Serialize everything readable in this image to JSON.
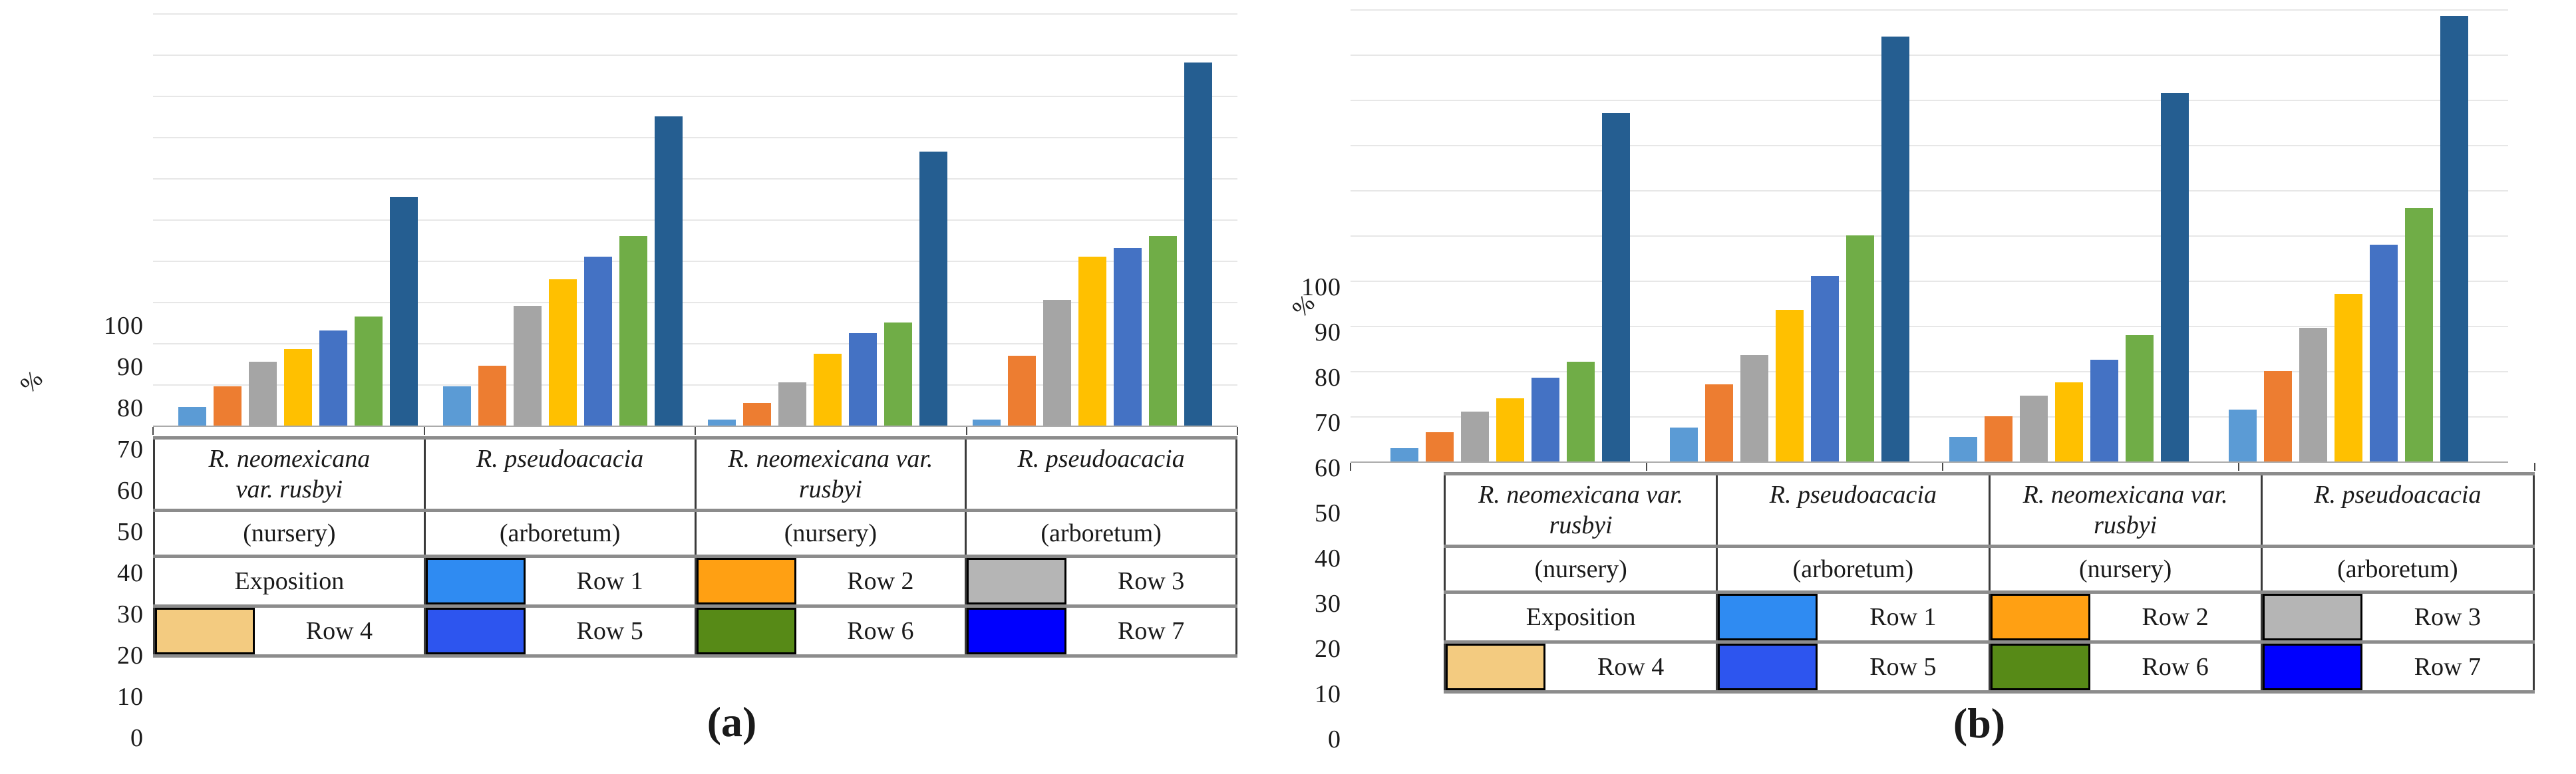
{
  "bar_colors": [
    "#5B9BD5",
    "#ED7D31",
    "#A5A5A5",
    "#FFC000",
    "#4472C4",
    "#70AD47",
    "#255E91"
  ],
  "gridline_color": "#e7e7e7",
  "panels": [
    {
      "caption": "(a)",
      "unit_label": "%",
      "y_ticks": [
        "0",
        "10",
        "20",
        "30",
        "40",
        "50",
        "60",
        "70",
        "80",
        "90",
        "100"
      ],
      "table": {
        "species": [
          {
            "line1": "R. neomexicana",
            "line2": "var. rusbyi"
          },
          {
            "line1": "R. pseudoacacia",
            "line2": ""
          },
          {
            "line1": "R. neomexicana var.",
            "line2": "rusbyi"
          },
          {
            "line1": "R. pseudoacacia",
            "line2": ""
          }
        ],
        "sites": [
          "(nursery)",
          "(arboretum)",
          "(nursery)",
          "(arboretum)"
        ],
        "legend_rows": [
          [
            {
              "swatch": null,
              "label": "Exposition"
            },
            {
              "swatch": "#2F8BF2",
              "label": "Row 1"
            },
            {
              "swatch": "#FFA013",
              "label": "Row 2"
            },
            {
              "swatch": "#B5B5B5",
              "label": "Row 3"
            }
          ],
          [
            {
              "swatch": "#F3CB80",
              "label": "Row 4"
            },
            {
              "swatch": "#2D55EF",
              "label": "Row 5"
            },
            {
              "swatch": "#578A17",
              "label": "Row 6"
            },
            {
              "swatch": "#0000FE",
              "label": "Row 7"
            }
          ]
        ]
      }
    },
    {
      "caption": "(b)",
      "unit_label": "%",
      "y_ticks": [
        "0",
        "10",
        "20",
        "30",
        "40",
        "50",
        "60",
        "70",
        "80",
        "90",
        "100"
      ],
      "table": {
        "species": [
          {
            "line1": "R. neomexicana var.",
            "line2": "rusbyi"
          },
          {
            "line1": "R. pseudoacacia",
            "line2": ""
          },
          {
            "line1": "R. neomexicana var.",
            "line2": "rusbyi"
          },
          {
            "line1": "R. pseudoacacia",
            "line2": ""
          }
        ],
        "sites": [
          "(nursery)",
          "(arboretum)",
          "(nursery)",
          "(arboretum)"
        ],
        "legend_rows": [
          [
            {
              "swatch": null,
              "label": "Exposition"
            },
            {
              "swatch": "#2F8BF2",
              "label": "Row 1"
            },
            {
              "swatch": "#FFA013",
              "label": "Row 2"
            },
            {
              "swatch": "#B5B5B5",
              "label": "Row 3"
            }
          ],
          [
            {
              "swatch": "#F3CB80",
              "label": "Row 4"
            },
            {
              "swatch": "#2D55EF",
              "label": "Row 5"
            },
            {
              "swatch": "#578A17",
              "label": "Row 6"
            },
            {
              "swatch": "#0000FE",
              "label": "Row 7"
            }
          ]
        ]
      }
    }
  ],
  "chart_data": [
    {
      "type": "bar",
      "title": "(a)",
      "ylabel": "%",
      "ylim": [
        0,
        100
      ],
      "grid": true,
      "legend_position": "bottom-table",
      "categories": [
        "R. neomexicana var. rusbyi (nursery)",
        "R. pseudoacacia (arboretum)",
        "R. neomexicana var. rusbyi (nursery)",
        "R. pseudoacacia (arboretum)"
      ],
      "series": [
        {
          "name": "Row 1",
          "values": [
            4.5,
            9.5,
            1.5,
            1.5
          ]
        },
        {
          "name": "Row 2",
          "values": [
            9.5,
            14.5,
            5.5,
            17
          ]
        },
        {
          "name": "Row 3",
          "values": [
            15.5,
            29,
            10.5,
            30.5
          ]
        },
        {
          "name": "Row 4",
          "values": [
            18.5,
            35.5,
            17.5,
            41
          ]
        },
        {
          "name": "Row 5",
          "values": [
            23,
            41,
            22.5,
            43
          ]
        },
        {
          "name": "Row 6",
          "values": [
            26.5,
            46,
            25,
            46
          ]
        },
        {
          "name": "Row 7",
          "values": [
            55.5,
            75,
            66.5,
            88
          ]
        }
      ]
    },
    {
      "type": "bar",
      "title": "(b)",
      "ylabel": "%",
      "ylim": [
        0,
        100
      ],
      "grid": true,
      "legend_position": "bottom-table",
      "categories": [
        "R. neomexicana var. rusbyi (nursery)",
        "R. pseudoacacia (arboretum)",
        "R. neomexicana var. rusbyi (nursery)",
        "R. pseudoacacia (arboretum)"
      ],
      "series": [
        {
          "name": "Row 1",
          "values": [
            3,
            7.5,
            5.5,
            11.5
          ]
        },
        {
          "name": "Row 2",
          "values": [
            6.5,
            17,
            10,
            20
          ]
        },
        {
          "name": "Row 3",
          "values": [
            11,
            23.5,
            14.5,
            29.5
          ]
        },
        {
          "name": "Row 4",
          "values": [
            14,
            33.5,
            17.5,
            37
          ]
        },
        {
          "name": "Row 5",
          "values": [
            18.5,
            41,
            22.5,
            48
          ]
        },
        {
          "name": "Row 6",
          "values": [
            22,
            50,
            28,
            56
          ]
        },
        {
          "name": "Row 7",
          "values": [
            77,
            94,
            81.5,
            98.5
          ]
        }
      ]
    }
  ]
}
